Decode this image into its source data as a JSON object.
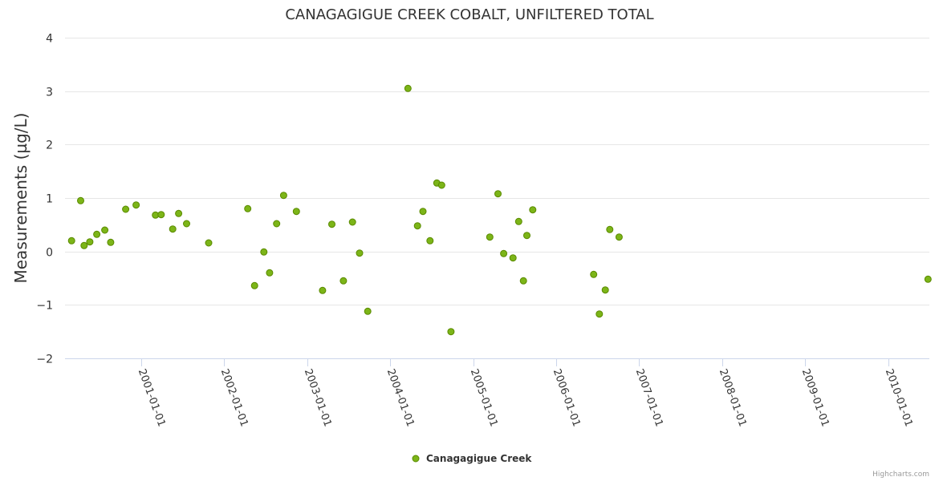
{
  "chart_data": {
    "type": "scatter",
    "title": "CANAGAGIGUE CREEK COBALT, UNFILTERED TOTAL",
    "ylabel": "Measurements (µg/L)",
    "xlabel": "",
    "ylim": [
      -2,
      4
    ],
    "yticks": [
      4,
      3,
      2,
      1,
      0,
      -1,
      -2
    ],
    "ytick_labels": [
      "4",
      "3",
      "2",
      "1",
      "0",
      "−1",
      "−2"
    ],
    "xlim": [
      "2000-02-01",
      "2010-07-01"
    ],
    "xticks": [
      "2001-01-01",
      "2002-01-01",
      "2003-01-01",
      "2004-01-01",
      "2005-01-01",
      "2006-01-01",
      "2007-01-01",
      "2008-01-01",
      "2009-01-01",
      "2010-01-01"
    ],
    "grid": true,
    "legend_position": "bottom-center",
    "series": [
      {
        "name": "Canagagigue Creek",
        "color": "#7cb518",
        "points": [
          {
            "x": "2000-03-01",
            "y": 0.2
          },
          {
            "x": "2000-04-10",
            "y": 0.95
          },
          {
            "x": "2000-04-25",
            "y": 0.11
          },
          {
            "x": "2000-05-20",
            "y": 0.18
          },
          {
            "x": "2000-06-20",
            "y": 0.32
          },
          {
            "x": "2000-07-25",
            "y": 0.4
          },
          {
            "x": "2000-08-20",
            "y": 0.17
          },
          {
            "x": "2000-10-25",
            "y": 0.79
          },
          {
            "x": "2000-12-10",
            "y": 0.87
          },
          {
            "x": "2001-03-05",
            "y": 0.68
          },
          {
            "x": "2001-03-30",
            "y": 0.69
          },
          {
            "x": "2001-05-20",
            "y": 0.42
          },
          {
            "x": "2001-06-15",
            "y": 0.71
          },
          {
            "x": "2001-07-20",
            "y": 0.52
          },
          {
            "x": "2001-10-25",
            "y": 0.16
          },
          {
            "x": "2002-04-15",
            "y": 0.8
          },
          {
            "x": "2002-05-15",
            "y": -0.64
          },
          {
            "x": "2002-06-25",
            "y": -0.01
          },
          {
            "x": "2002-07-20",
            "y": -0.4
          },
          {
            "x": "2002-08-20",
            "y": 0.52
          },
          {
            "x": "2002-09-20",
            "y": 1.05
          },
          {
            "x": "2002-11-15",
            "y": 0.75
          },
          {
            "x": "2003-03-10",
            "y": -0.73
          },
          {
            "x": "2003-04-20",
            "y": 0.51
          },
          {
            "x": "2003-06-10",
            "y": -0.55
          },
          {
            "x": "2003-07-20",
            "y": 0.55
          },
          {
            "x": "2003-08-20",
            "y": -0.03
          },
          {
            "x": "2003-09-25",
            "y": -1.12
          },
          {
            "x": "2004-03-20",
            "y": 3.05
          },
          {
            "x": "2004-05-01",
            "y": 0.48
          },
          {
            "x": "2004-05-25",
            "y": 0.75
          },
          {
            "x": "2004-06-25",
            "y": 0.2
          },
          {
            "x": "2004-07-25",
            "y": 1.28
          },
          {
            "x": "2004-08-15",
            "y": 1.24
          },
          {
            "x": "2004-09-25",
            "y": -1.5
          },
          {
            "x": "2005-03-15",
            "y": 0.27
          },
          {
            "x": "2005-04-20",
            "y": 1.08
          },
          {
            "x": "2005-05-15",
            "y": -0.04
          },
          {
            "x": "2005-06-25",
            "y": -0.12
          },
          {
            "x": "2005-07-20",
            "y": 0.56
          },
          {
            "x": "2005-08-10",
            "y": -0.55
          },
          {
            "x": "2005-08-25",
            "y": 0.3
          },
          {
            "x": "2005-09-20",
            "y": 0.78
          },
          {
            "x": "2006-06-15",
            "y": -0.43
          },
          {
            "x": "2006-07-10",
            "y": -1.17
          },
          {
            "x": "2006-08-05",
            "y": -0.72
          },
          {
            "x": "2006-08-25",
            "y": 0.41
          },
          {
            "x": "2006-10-05",
            "y": 0.27
          },
          {
            "x": "2010-06-25",
            "y": -0.52
          }
        ]
      }
    ]
  },
  "credits": "Highcharts.com"
}
